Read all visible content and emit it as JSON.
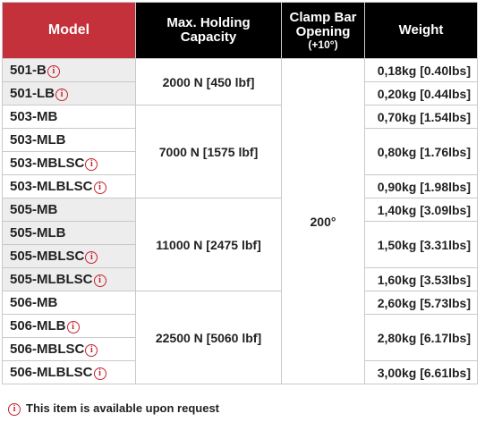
{
  "header": {
    "model": "Model",
    "capacity_line1": "Max. Holding",
    "capacity_line2": "Capacity",
    "opening_line1": "Clamp Bar",
    "opening_line2": "Opening",
    "opening_line3": "(+10°)",
    "weight": "Weight"
  },
  "groups": [
    {
      "capacity": "2000 N [450 lbf]",
      "rows": [
        {
          "model": "501-B",
          "info": true,
          "weight": "0,18kg [0.40lbs]"
        },
        {
          "model": "501-LB",
          "info": true,
          "weight": "0,20kg [0.44lbs]"
        }
      ]
    },
    {
      "capacity": "7000 N [1575 lbf]",
      "rows": [
        {
          "model": "503-MB",
          "info": false,
          "weight": "0,70kg [1.54lbs]"
        },
        {
          "model": "503-MLB",
          "info": false,
          "weight": "0,80kg [1.76lbs]"
        },
        {
          "model": "503-MBLSC",
          "info": true,
          "weight": ""
        },
        {
          "model": "503-MLBLSC",
          "info": true,
          "weight": "0,90kg [1.98lbs]"
        }
      ]
    },
    {
      "capacity": "11000 N [2475 lbf]",
      "rows": [
        {
          "model": "505-MB",
          "info": false,
          "weight": "1,40kg [3.09lbs]"
        },
        {
          "model": "505-MLB",
          "info": false,
          "weight": "1,50kg [3.31lbs]"
        },
        {
          "model": "505-MBLSC",
          "info": true,
          "weight": ""
        },
        {
          "model": "505-MLBLSC",
          "info": true,
          "weight": "1,60kg [3.53lbs]"
        }
      ]
    },
    {
      "capacity": "22500 N [5060 lbf]",
      "rows": [
        {
          "model": "506-MB",
          "info": false,
          "weight": "2,60kg [5.73lbs]"
        },
        {
          "model": "506-MLB",
          "info": true,
          "weight": "2,80kg [6.17lbs]"
        },
        {
          "model": "506-MBLSC",
          "info": true,
          "weight": ""
        },
        {
          "model": "506-MLBLSC",
          "info": true,
          "weight": "3,00kg [6.61lbs]"
        }
      ]
    }
  ],
  "opening_value": "200°",
  "footnote": "This item is available upon request",
  "icons": {
    "info": "info-icon"
  },
  "colors": {
    "header_red": "#b8202d",
    "header_black": "#000000",
    "info_red": "#c8222f",
    "row_shade": "#ededed"
  }
}
